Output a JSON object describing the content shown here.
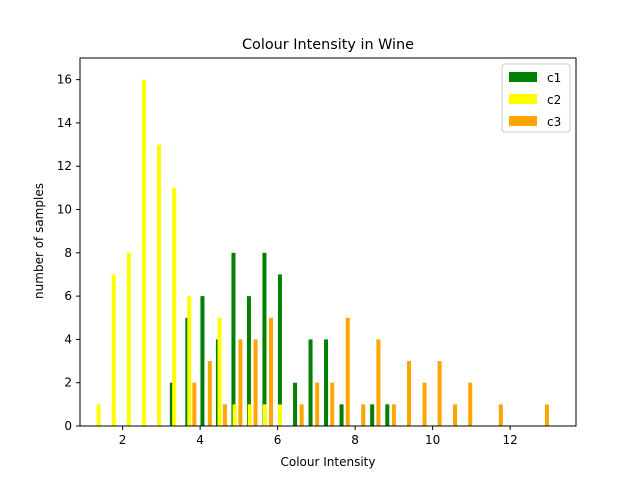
{
  "chart_data": {
    "type": "bar",
    "title": "Colour Intensity in Wine",
    "xlabel": "Colour Intensity",
    "ylabel": "number of samples",
    "xlim": [
      0.9,
      13.7
    ],
    "ylim": [
      0,
      17
    ],
    "xticks": [
      2,
      4,
      6,
      8,
      10,
      12
    ],
    "yticks": [
      0,
      2,
      4,
      6,
      8,
      10,
      12,
      14,
      16
    ],
    "grid": false,
    "legend_position": "top-right",
    "series": [
      {
        "name": "c1",
        "color": "#008000",
        "x": [
          3.27,
          3.67,
          4.06,
          4.46,
          4.86,
          5.26,
          5.66,
          6.06,
          6.45,
          6.85,
          7.25,
          7.65,
          8.44,
          8.83
        ],
        "values": [
          2,
          5,
          6,
          4,
          8,
          6,
          8,
          7,
          2,
          4,
          4,
          1,
          1,
          1
        ]
      },
      {
        "name": "c2",
        "color": "#ffff00",
        "x": [
          1.38,
          1.77,
          2.16,
          2.55,
          2.94,
          3.33,
          3.72,
          4.11,
          4.5,
          4.89,
          5.28,
          5.67,
          6.06
        ],
        "values": [
          1,
          7,
          8,
          16,
          13,
          11,
          6,
          0,
          5,
          1,
          1,
          1,
          1
        ]
      },
      {
        "name": "c3",
        "color": "#ffa500",
        "x": [
          3.85,
          4.25,
          4.64,
          5.04,
          5.43,
          5.83,
          6.62,
          7.02,
          7.41,
          7.81,
          8.21,
          8.6,
          9.0,
          9.39,
          9.79,
          10.18,
          10.58,
          10.97,
          11.76,
          12.95
        ],
        "values": [
          2,
          3,
          1,
          4,
          4,
          5,
          1,
          2,
          2,
          5,
          1,
          4,
          1,
          3,
          2,
          3,
          1,
          2,
          1,
          1
        ]
      }
    ]
  }
}
